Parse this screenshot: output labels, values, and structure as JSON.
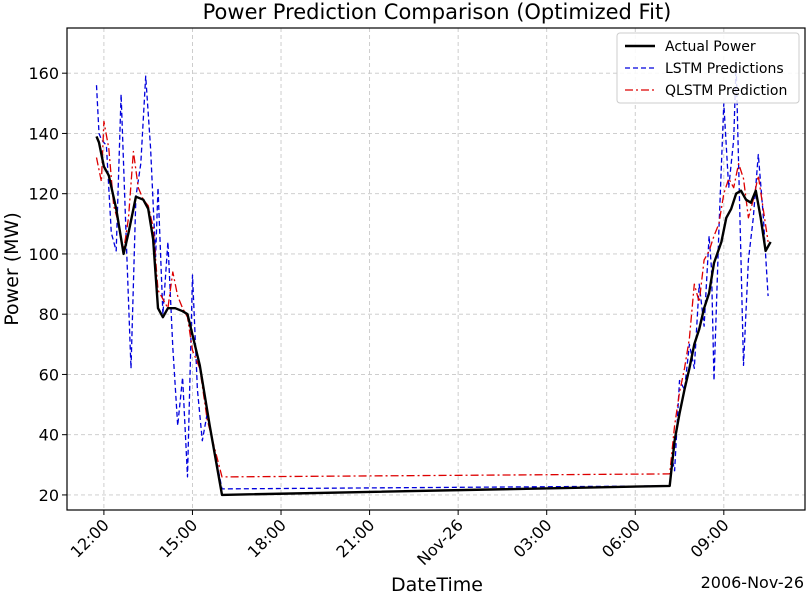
{
  "chart_data": {
    "type": "line",
    "title": "Power Prediction Comparison (Optimized Fit)",
    "xlabel": "DateTime",
    "ylabel": "Power (MW)",
    "x_offset_label": "2006-Nov-26",
    "xlim": [
      "2006-11-25 10:45",
      "2006-11-26 11:45"
    ],
    "ylim": [
      15,
      175
    ],
    "x_ticks": [
      {
        "t": "2006-11-25 12:00",
        "label": "12:00"
      },
      {
        "t": "2006-11-25 15:00",
        "label": "15:00"
      },
      {
        "t": "2006-11-25 18:00",
        "label": "18:00"
      },
      {
        "t": "2006-11-25 21:00",
        "label": "21:00"
      },
      {
        "t": "2006-11-26 00:00",
        "label": "Nov-26"
      },
      {
        "t": "2006-11-26 03:00",
        "label": "03:00"
      },
      {
        "t": "2006-11-26 06:00",
        "label": "06:00"
      },
      {
        "t": "2006-11-26 09:00",
        "label": "09:00"
      }
    ],
    "y_ticks": [
      20,
      40,
      60,
      80,
      100,
      120,
      140,
      160
    ],
    "grid": true,
    "legend_position": "top-right",
    "series": [
      {
        "name": "Actual Power",
        "color": "#000000",
        "style": "solid",
        "points": [
          [
            "2006-11-25 11:45",
            139
          ],
          [
            "2006-11-25 11:50",
            137
          ],
          [
            "2006-11-25 12:00",
            129
          ],
          [
            "2006-11-25 12:10",
            126
          ],
          [
            "2006-11-25 12:25",
            115
          ],
          [
            "2006-11-25 12:40",
            100
          ],
          [
            "2006-11-25 12:50",
            107
          ],
          [
            "2006-11-25 13:05",
            119
          ],
          [
            "2006-11-25 13:20",
            118
          ],
          [
            "2006-11-25 13:30",
            115
          ],
          [
            "2006-11-25 13:40",
            105
          ],
          [
            "2006-11-25 13:50",
            82
          ],
          [
            "2006-11-25 14:00",
            79
          ],
          [
            "2006-11-25 14:10",
            82
          ],
          [
            "2006-11-25 14:25",
            82
          ],
          [
            "2006-11-25 14:40",
            81
          ],
          [
            "2006-11-25 14:50",
            80
          ],
          [
            "2006-11-25 15:15",
            63
          ],
          [
            "2006-11-25 15:35",
            43
          ],
          [
            "2006-11-25 16:00",
            20
          ],
          [
            "2006-11-26 07:10",
            23
          ],
          [
            "2006-11-26 07:20",
            38
          ],
          [
            "2006-11-26 07:30",
            47
          ],
          [
            "2006-11-26 07:40",
            55
          ],
          [
            "2006-11-26 07:50",
            62
          ],
          [
            "2006-11-26 08:00",
            70
          ],
          [
            "2006-11-26 08:10",
            75
          ],
          [
            "2006-11-26 08:20",
            82
          ],
          [
            "2006-11-26 08:30",
            87
          ],
          [
            "2006-11-26 08:40",
            97
          ],
          [
            "2006-11-26 08:55",
            104
          ],
          [
            "2006-11-26 09:05",
            112
          ],
          [
            "2006-11-26 09:15",
            115
          ],
          [
            "2006-11-26 09:25",
            120
          ],
          [
            "2006-11-26 09:35",
            121
          ],
          [
            "2006-11-26 09:45",
            118
          ],
          [
            "2006-11-26 09:55",
            117
          ],
          [
            "2006-11-26 10:05",
            121
          ],
          [
            "2006-11-26 10:15",
            112
          ],
          [
            "2006-11-26 10:25",
            101
          ],
          [
            "2006-11-26 10:35",
            104
          ]
        ]
      },
      {
        "name": "LSTM Predictions",
        "color": "#0000dd",
        "style": "dashed",
        "points": [
          [
            "2006-11-25 11:45",
            156
          ],
          [
            "2006-11-25 11:50",
            140
          ],
          [
            "2006-11-25 11:55",
            138
          ],
          [
            "2006-11-25 12:05",
            136
          ],
          [
            "2006-11-25 12:15",
            107
          ],
          [
            "2006-11-25 12:25",
            101
          ],
          [
            "2006-11-25 12:35",
            153
          ],
          [
            "2006-11-25 12:45",
            107
          ],
          [
            "2006-11-25 12:55",
            62
          ],
          [
            "2006-11-25 13:05",
            119
          ],
          [
            "2006-11-25 13:15",
            130
          ],
          [
            "2006-11-25 13:25",
            159
          ],
          [
            "2006-11-25 13:35",
            135
          ],
          [
            "2006-11-25 13:45",
            99
          ],
          [
            "2006-11-25 13:50",
            122
          ],
          [
            "2006-11-25 14:00",
            80
          ],
          [
            "2006-11-25 14:10",
            104
          ],
          [
            "2006-11-25 14:20",
            69
          ],
          [
            "2006-11-25 14:30",
            43
          ],
          [
            "2006-11-25 14:40",
            59
          ],
          [
            "2006-11-25 14:50",
            26
          ],
          [
            "2006-11-25 15:00",
            93
          ],
          [
            "2006-11-25 15:10",
            55
          ],
          [
            "2006-11-25 15:20",
            38
          ],
          [
            "2006-11-25 15:30",
            47
          ],
          [
            "2006-11-25 16:00",
            22
          ],
          [
            "2006-11-26 07:10",
            23
          ],
          [
            "2006-11-26 07:15",
            32
          ],
          [
            "2006-11-26 07:20",
            28
          ],
          [
            "2006-11-26 07:30",
            58
          ],
          [
            "2006-11-26 07:40",
            55
          ],
          [
            "2006-11-26 07:50",
            70
          ],
          [
            "2006-11-26 08:00",
            62
          ],
          [
            "2006-11-26 08:10",
            90
          ],
          [
            "2006-11-26 08:20",
            76
          ],
          [
            "2006-11-26 08:30",
            106
          ],
          [
            "2006-11-26 08:35",
            95
          ],
          [
            "2006-11-26 08:40",
            58
          ],
          [
            "2006-11-26 08:50",
            108
          ],
          [
            "2006-11-26 09:00",
            150
          ],
          [
            "2006-11-26 09:10",
            122
          ],
          [
            "2006-11-26 09:20",
            138
          ],
          [
            "2006-11-26 09:25",
            163
          ],
          [
            "2006-11-26 09:35",
            98
          ],
          [
            "2006-11-26 09:40",
            63
          ],
          [
            "2006-11-26 09:50",
            98
          ],
          [
            "2006-11-26 10:00",
            112
          ],
          [
            "2006-11-26 10:10",
            133
          ],
          [
            "2006-11-26 10:20",
            113
          ],
          [
            "2006-11-26 10:30",
            86
          ]
        ]
      },
      {
        "name": "QLSTM Prediction",
        "color": "#dd0000",
        "style": "dashdot",
        "points": [
          [
            "2006-11-25 11:45",
            132
          ],
          [
            "2006-11-25 11:55",
            124
          ],
          [
            "2006-11-25 12:00",
            144
          ],
          [
            "2006-11-25 12:10",
            135
          ],
          [
            "2006-11-25 12:20",
            116
          ],
          [
            "2006-11-25 12:30",
            110
          ],
          [
            "2006-11-25 12:40",
            101
          ],
          [
            "2006-11-25 12:50",
            112
          ],
          [
            "2006-11-25 13:00",
            134
          ],
          [
            "2006-11-25 13:10",
            122
          ],
          [
            "2006-11-25 13:20",
            118
          ],
          [
            "2006-11-25 13:30",
            116
          ],
          [
            "2006-11-25 13:40",
            109
          ],
          [
            "2006-11-25 13:50",
            88
          ],
          [
            "2006-11-25 14:00",
            85
          ],
          [
            "2006-11-25 14:10",
            82
          ],
          [
            "2006-11-25 14:20",
            94
          ],
          [
            "2006-11-25 14:30",
            86
          ],
          [
            "2006-11-25 14:40",
            82
          ],
          [
            "2006-11-25 14:50",
            79
          ],
          [
            "2006-11-25 15:00",
            68
          ],
          [
            "2006-11-25 15:15",
            62
          ],
          [
            "2006-11-25 15:30",
            45
          ],
          [
            "2006-11-25 16:00",
            26
          ],
          [
            "2006-11-26 07:10",
            27
          ],
          [
            "2006-11-26 07:20",
            43
          ],
          [
            "2006-11-26 07:30",
            54
          ],
          [
            "2006-11-26 07:40",
            62
          ],
          [
            "2006-11-26 07:50",
            72
          ],
          [
            "2006-11-26 08:00",
            90
          ],
          [
            "2006-11-26 08:10",
            84
          ],
          [
            "2006-11-26 08:20",
            98
          ],
          [
            "2006-11-26 08:30",
            101
          ],
          [
            "2006-11-26 08:40",
            106
          ],
          [
            "2006-11-26 08:50",
            110
          ],
          [
            "2006-11-26 09:00",
            120
          ],
          [
            "2006-11-26 09:10",
            125
          ],
          [
            "2006-11-26 09:20",
            122
          ],
          [
            "2006-11-26 09:30",
            130
          ],
          [
            "2006-11-26 09:40",
            125
          ],
          [
            "2006-11-26 09:50",
            112
          ],
          [
            "2006-11-26 10:00",
            118
          ],
          [
            "2006-11-26 10:10",
            126
          ],
          [
            "2006-11-26 10:20",
            115
          ],
          [
            "2006-11-26 10:30",
            104
          ]
        ]
      }
    ]
  }
}
